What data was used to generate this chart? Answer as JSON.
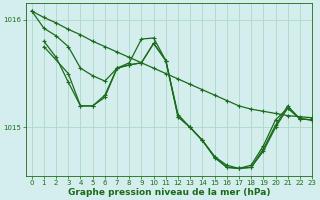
{
  "title": "Graphe pression niveau de la mer (hPa)",
  "bg_color": "#d4eeed",
  "grid_color": "#b0d8cc",
  "line_color": "#1a6b1a",
  "xlim": [
    -0.5,
    23
  ],
  "ylim": [
    1014.55,
    1016.15
  ],
  "yticks": [
    1015,
    1016
  ],
  "xticks": [
    0,
    1,
    2,
    3,
    4,
    5,
    6,
    7,
    8,
    9,
    10,
    11,
    12,
    13,
    14,
    15,
    16,
    17,
    18,
    19,
    20,
    21,
    22,
    23
  ],
  "series1": {
    "x": [
      0,
      1,
      2,
      3,
      4,
      5,
      6,
      7,
      8,
      9,
      10,
      11,
      12,
      13,
      14,
      15,
      16,
      17,
      18,
      19,
      20,
      21,
      22,
      23
    ],
    "y": [
      1016.08,
      1016.02,
      1015.97,
      1015.91,
      1015.86,
      1015.8,
      1015.75,
      1015.7,
      1015.65,
      1015.6,
      1015.55,
      1015.5,
      1015.45,
      1015.4,
      1015.35,
      1015.3,
      1015.25,
      1015.2,
      1015.17,
      1015.15,
      1015.13,
      1015.11,
      1015.1,
      1015.09
    ]
  },
  "series2": {
    "x": [
      1,
      2,
      3,
      4,
      5,
      6,
      7,
      8,
      9,
      10,
      11,
      12,
      13,
      14,
      15,
      16,
      17,
      18,
      19,
      20,
      21,
      22,
      23
    ],
    "y": [
      1015.8,
      1015.65,
      1015.42,
      1015.2,
      1015.2,
      1015.28,
      1015.55,
      1015.58,
      1015.6,
      1015.78,
      1015.62,
      1015.1,
      1015.0,
      1014.88,
      1014.72,
      1014.63,
      1014.62,
      1014.63,
      1014.78,
      1015.0,
      1015.18,
      1015.08,
      1015.07
    ]
  },
  "series3": {
    "x": [
      1,
      3,
      4,
      5,
      6,
      7,
      8,
      9,
      10,
      11,
      12,
      13,
      14,
      15,
      16,
      17,
      18,
      19,
      20,
      21,
      22,
      23
    ],
    "y": [
      1015.75,
      1015.5,
      1015.2,
      1015.2,
      1015.3,
      1015.55,
      1015.58,
      1015.6,
      1015.78,
      1015.62,
      1015.1,
      1015.0,
      1014.88,
      1014.73,
      1014.63,
      1014.62,
      1014.63,
      1014.8,
      1015.02,
      1015.2,
      1015.08,
      1015.07
    ]
  },
  "series4": {
    "x": [
      0,
      1,
      2,
      3,
      4,
      5,
      6,
      7,
      8,
      9,
      10,
      11,
      12,
      13,
      14,
      15,
      16,
      17,
      18,
      19,
      20,
      21,
      22,
      23
    ],
    "y": [
      1016.08,
      1015.92,
      1015.85,
      1015.75,
      1015.55,
      1015.48,
      1015.43,
      1015.55,
      1015.6,
      1015.82,
      1015.83,
      1015.62,
      1015.12,
      1015.0,
      1014.88,
      1014.73,
      1014.65,
      1014.62,
      1014.65,
      1014.83,
      1015.07,
      1015.18,
      1015.08,
      1015.07
    ]
  }
}
